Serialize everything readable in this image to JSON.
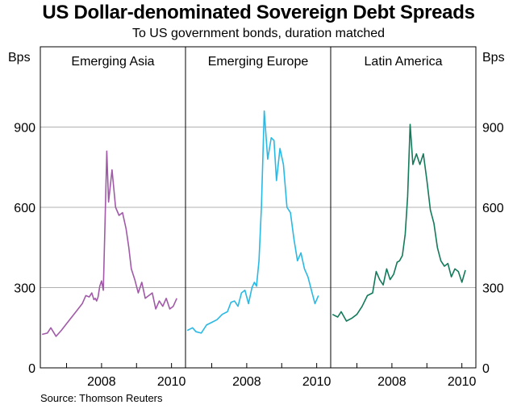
{
  "title": "US Dollar-denominated Sovereign Debt Spreads",
  "subtitle": "To US government bonds, duration matched",
  "source": "Source: Thomson Reuters",
  "chart_data": {
    "type": "line",
    "yunit_left": "Bps",
    "yunit_right": "Bps",
    "ylim": [
      0,
      1200
    ],
    "yticks": [
      0,
      300,
      600,
      900
    ],
    "xlim": [
      2006.25,
      2010.4
    ],
    "xticks": [
      2008,
      2010
    ],
    "xtick_labels": [
      "2008",
      "2010"
    ],
    "grid": true,
    "panels": [
      {
        "name": "Emerging Asia",
        "color": "#a05aa8",
        "x": [
          2006.3,
          2006.45,
          2006.55,
          2006.7,
          2006.85,
          2007.0,
          2007.15,
          2007.3,
          2007.45,
          2007.55,
          2007.65,
          2007.72,
          2007.78,
          2007.82,
          2007.86,
          2007.9,
          2007.95,
          2008.0,
          2008.05,
          2008.1,
          2008.15,
          2008.2,
          2008.3,
          2008.4,
          2008.5,
          2008.6,
          2008.7,
          2008.78,
          2008.85,
          2008.95,
          2009.05,
          2009.15,
          2009.25,
          2009.35,
          2009.45,
          2009.55,
          2009.65,
          2009.75,
          2009.85,
          2009.95,
          2010.05,
          2010.15
        ],
        "values": [
          125,
          130,
          150,
          118,
          140,
          165,
          190,
          215,
          240,
          270,
          265,
          280,
          255,
          260,
          250,
          265,
          305,
          325,
          290,
          540,
          810,
          620,
          740,
          600,
          570,
          580,
          520,
          450,
          370,
          330,
          280,
          320,
          260,
          270,
          280,
          220,
          250,
          230,
          260,
          220,
          230,
          260
        ]
      },
      {
        "name": "Emerging Europe",
        "color": "#29b9e4",
        "x": [
          2006.3,
          2006.45,
          2006.55,
          2006.7,
          2006.85,
          2007.0,
          2007.15,
          2007.3,
          2007.45,
          2007.55,
          2007.65,
          2007.75,
          2007.85,
          2007.95,
          2008.05,
          2008.15,
          2008.22,
          2008.28,
          2008.35,
          2008.42,
          2008.5,
          2008.6,
          2008.7,
          2008.78,
          2008.85,
          2008.95,
          2009.05,
          2009.15,
          2009.25,
          2009.35,
          2009.45,
          2009.55,
          2009.65,
          2009.75,
          2009.85,
          2009.95,
          2010.05
        ],
        "values": [
          140,
          150,
          135,
          130,
          160,
          170,
          180,
          200,
          210,
          245,
          250,
          230,
          280,
          290,
          240,
          300,
          320,
          305,
          400,
          600,
          960,
          780,
          860,
          850,
          700,
          820,
          760,
          600,
          580,
          480,
          400,
          430,
          370,
          340,
          290,
          240,
          270
        ]
      },
      {
        "name": "Latin America",
        "color": "#137a5b",
        "x": [
          2006.3,
          2006.45,
          2006.55,
          2006.7,
          2006.85,
          2007.0,
          2007.15,
          2007.3,
          2007.45,
          2007.55,
          2007.65,
          2007.75,
          2007.85,
          2007.95,
          2008.05,
          2008.15,
          2008.22,
          2008.3,
          2008.38,
          2008.45,
          2008.52,
          2008.6,
          2008.7,
          2008.8,
          2008.9,
          2009.0,
          2009.1,
          2009.2,
          2009.3,
          2009.4,
          2009.5,
          2009.6,
          2009.7,
          2009.8,
          2009.9,
          2010.0,
          2010.1
        ],
        "values": [
          200,
          190,
          210,
          175,
          185,
          200,
          230,
          270,
          280,
          360,
          330,
          310,
          370,
          330,
          350,
          395,
          400,
          420,
          500,
          640,
          910,
          760,
          800,
          760,
          800,
          700,
          590,
          540,
          450,
          400,
          380,
          390,
          340,
          370,
          360,
          320,
          365
        ]
      }
    ]
  }
}
